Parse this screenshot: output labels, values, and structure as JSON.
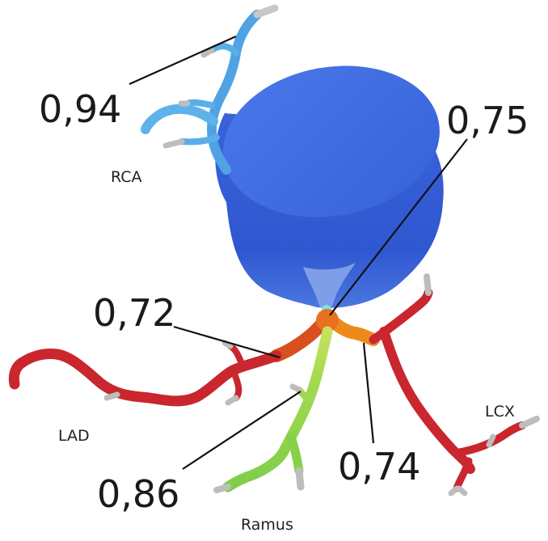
{
  "labels": {
    "rca": "RCA",
    "lad": "LAD",
    "lcx": "LCX",
    "ramus": "Ramus"
  },
  "values": {
    "rca": "0,94",
    "ostium": "0,75",
    "lad": "0,72",
    "ramus": "0,86",
    "lcx": "0,74"
  },
  "colors": {
    "aorta": "#3f6fe3",
    "rca_vessel": "#58a9e6",
    "lad_vessel": "#c9262e",
    "lcx_vessel": "#c9262e",
    "ramus_vessel": "#8fd34a",
    "left_main": "#e0781f",
    "outlet": "#b0b0b0"
  }
}
